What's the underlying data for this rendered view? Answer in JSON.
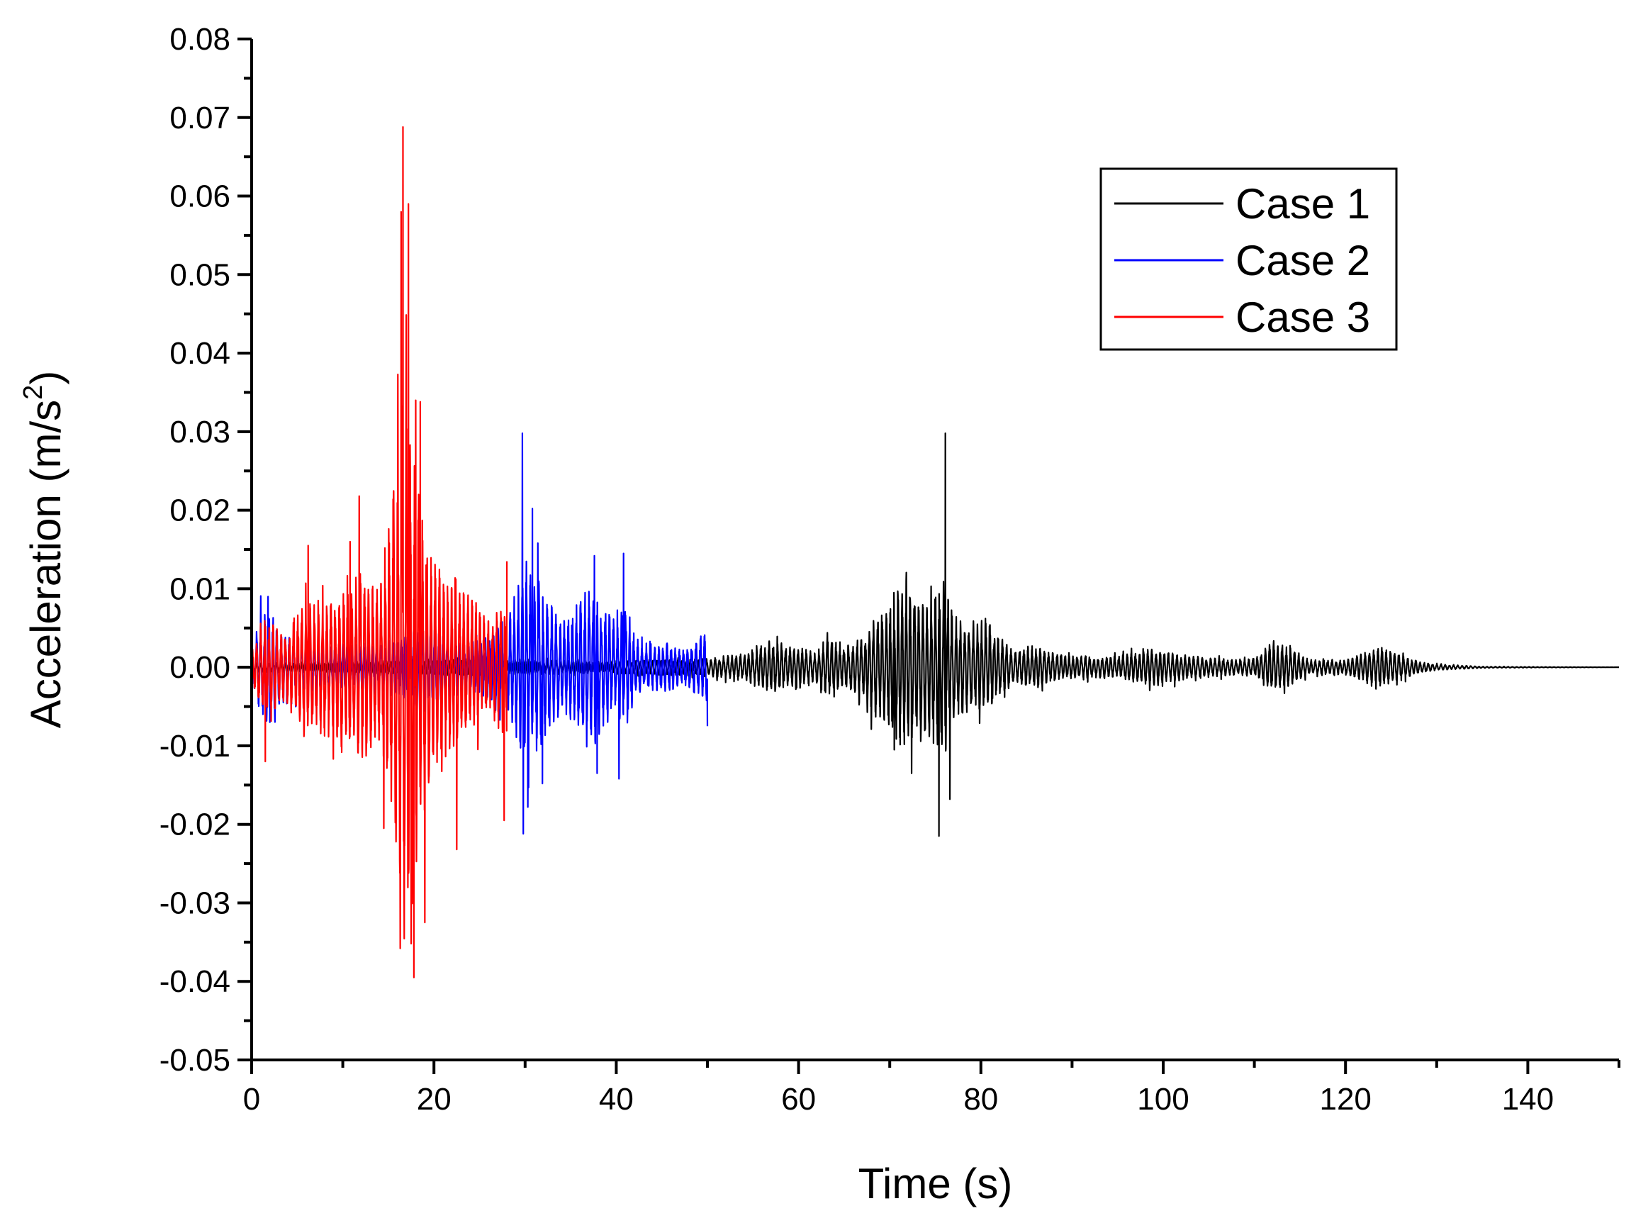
{
  "chart_data": {
    "type": "line",
    "title": "",
    "xlabel": "Time (s)",
    "ylabel": {
      "text": "Acceleration (m/s",
      "superscript": "2",
      "suffix": ")"
    },
    "xlim": [
      0,
      150
    ],
    "ylim": [
      -0.05,
      0.08
    ],
    "x_ticks": [
      0,
      20,
      40,
      60,
      80,
      100,
      120,
      140
    ],
    "x_tick_labels": [
      "0",
      "20",
      "40",
      "60",
      "80",
      "100",
      "120",
      "140"
    ],
    "y_ticks": [
      -0.05,
      -0.04,
      -0.03,
      -0.02,
      -0.01,
      0.0,
      0.01,
      0.02,
      0.03,
      0.04,
      0.05,
      0.06,
      0.07,
      0.08
    ],
    "y_tick_labels": [
      "-0.05",
      "-0.04",
      "-0.03",
      "-0.02",
      "-0.01",
      "0.00",
      "0.01",
      "0.02",
      "0.03",
      "0.04",
      "0.05",
      "0.06",
      "0.07",
      "0.08"
    ],
    "grid": false,
    "legend_position": "top-right",
    "series": [
      {
        "name": "Case 1",
        "color": "#000000",
        "x_range": [
          0,
          150
        ],
        "envelope": [
          [
            0,
            0.0006
          ],
          [
            10,
            0.0008
          ],
          [
            20,
            0.001
          ],
          [
            30,
            0.001
          ],
          [
            40,
            0.0008
          ],
          [
            50,
            0.0012
          ],
          [
            52,
            0.0015
          ],
          [
            55,
            0.002
          ],
          [
            57,
            0.0035
          ],
          [
            60,
            0.0025
          ],
          [
            62,
            0.002
          ],
          [
            63,
            0.0038
          ],
          [
            65,
            0.0028
          ],
          [
            67,
            0.004
          ],
          [
            68,
            0.006
          ],
          [
            70,
            0.008
          ],
          [
            71,
            0.0105
          ],
          [
            72,
            0.011
          ],
          [
            73,
            0.009
          ],
          [
            74,
            0.009
          ],
          [
            75,
            0.01
          ],
          [
            76,
            0.012
          ],
          [
            77,
            0.007
          ],
          [
            78,
            0.006
          ],
          [
            79,
            0.0065
          ],
          [
            80,
            0.006
          ],
          [
            81,
            0.0055
          ],
          [
            82,
            0.004
          ],
          [
            84,
            0.002
          ],
          [
            86,
            0.003
          ],
          [
            88,
            0.0018
          ],
          [
            90,
            0.0015
          ],
          [
            95,
            0.0015
          ],
          [
            99,
            0.0025
          ],
          [
            100,
            0.0022
          ],
          [
            103,
            0.0015
          ],
          [
            108,
            0.001
          ],
          [
            110,
            0.0012
          ],
          [
            112,
            0.0035
          ],
          [
            114,
            0.0025
          ],
          [
            116,
            0.001
          ],
          [
            120,
            0.001
          ],
          [
            124,
            0.0028
          ],
          [
            126,
            0.0018
          ],
          [
            128,
            0.0008
          ],
          [
            130,
            0.0004
          ],
          [
            135,
            0.0001
          ],
          [
            140,
            5e-05
          ],
          [
            150,
            0.0
          ]
        ],
        "peaks": [
          [
            75.4,
            -0.0215
          ],
          [
            76.1,
            0.0298
          ],
          [
            76.6,
            -0.0168
          ],
          [
            72.4,
            -0.0135
          ],
          [
            71.8,
            0.011
          ],
          [
            70.5,
            -0.0105
          ],
          [
            80.5,
            0.0062
          ]
        ]
      },
      {
        "name": "Case 2",
        "color": "#0000ff",
        "x_range": [
          0,
          50
        ],
        "envelope": [
          [
            0,
            0.0015
          ],
          [
            1,
            0.007
          ],
          [
            2,
            0.008
          ],
          [
            3,
            0.005
          ],
          [
            5,
            0.004
          ],
          [
            8,
            0.0035
          ],
          [
            10,
            0.003
          ],
          [
            12,
            0.003
          ],
          [
            14,
            0.003
          ],
          [
            16,
            0.004
          ],
          [
            18,
            0.005
          ],
          [
            20,
            0.005
          ],
          [
            22,
            0.004
          ],
          [
            24,
            0.0035
          ],
          [
            26,
            0.004
          ],
          [
            28,
            0.006
          ],
          [
            29,
            0.01
          ],
          [
            30,
            0.014
          ],
          [
            31,
            0.012
          ],
          [
            32,
            0.01
          ],
          [
            33,
            0.008
          ],
          [
            34,
            0.006
          ],
          [
            35,
            0.007
          ],
          [
            36,
            0.009
          ],
          [
            37,
            0.011
          ],
          [
            38,
            0.009
          ],
          [
            39,
            0.008
          ],
          [
            40,
            0.006
          ],
          [
            41,
            0.009
          ],
          [
            42,
            0.004
          ],
          [
            43,
            0.003
          ],
          [
            45,
            0.0035
          ],
          [
            47,
            0.0025
          ],
          [
            49,
            0.0035
          ],
          [
            50,
            0.005
          ]
        ],
        "peaks": [
          [
            29.7,
            0.0298
          ],
          [
            29.8,
            -0.0212
          ],
          [
            30.3,
            -0.0178
          ],
          [
            30.8,
            0.0202
          ],
          [
            31.4,
            0.0158
          ],
          [
            31.9,
            -0.0148
          ],
          [
            37.6,
            0.0142
          ],
          [
            37.9,
            -0.0135
          ],
          [
            40.8,
            0.0145
          ],
          [
            40.3,
            -0.0142
          ],
          [
            50.0,
            0.0092
          ],
          [
            50.0,
            -0.0075
          ],
          [
            1.8,
            0.009
          ],
          [
            2.0,
            -0.007
          ]
        ]
      },
      {
        "name": "Case 3",
        "color": "#ff0000",
        "x_range": [
          0,
          28
        ],
        "envelope": [
          [
            0,
            0.002
          ],
          [
            1,
            0.006
          ],
          [
            2,
            0.006
          ],
          [
            3,
            0.005
          ],
          [
            4,
            0.005
          ],
          [
            5,
            0.007
          ],
          [
            6,
            0.01
          ],
          [
            7,
            0.008
          ],
          [
            8,
            0.009
          ],
          [
            9,
            0.01
          ],
          [
            10,
            0.012
          ],
          [
            11,
            0.011
          ],
          [
            12,
            0.013
          ],
          [
            13,
            0.011
          ],
          [
            14,
            0.01
          ],
          [
            15,
            0.016
          ],
          [
            16,
            0.03
          ],
          [
            17,
            0.038
          ],
          [
            18,
            0.026
          ],
          [
            19,
            0.02
          ],
          [
            20,
            0.014
          ],
          [
            21,
            0.012
          ],
          [
            22,
            0.011
          ],
          [
            23,
            0.01
          ],
          [
            24,
            0.009
          ],
          [
            25,
            0.008
          ],
          [
            26,
            0.006
          ],
          [
            27,
            0.008
          ],
          [
            28,
            0.01
          ]
        ],
        "peaks": [
          [
            16.6,
            0.0688
          ],
          [
            16.4,
            0.058
          ],
          [
            17.2,
            0.059
          ],
          [
            16.3,
            -0.0358
          ],
          [
            17.8,
            -0.0395
          ],
          [
            17.5,
            -0.0352
          ],
          [
            18.0,
            0.034
          ],
          [
            18.5,
            0.0338
          ],
          [
            19.0,
            -0.0325
          ],
          [
            11.8,
            0.0218
          ],
          [
            10.8,
            0.016
          ],
          [
            14.5,
            -0.0205
          ],
          [
            22.5,
            -0.0232
          ],
          [
            6.2,
            0.0155
          ],
          [
            1.5,
            -0.012
          ],
          [
            28.0,
            0.0135
          ],
          [
            27.7,
            -0.0195
          ]
        ]
      }
    ]
  }
}
